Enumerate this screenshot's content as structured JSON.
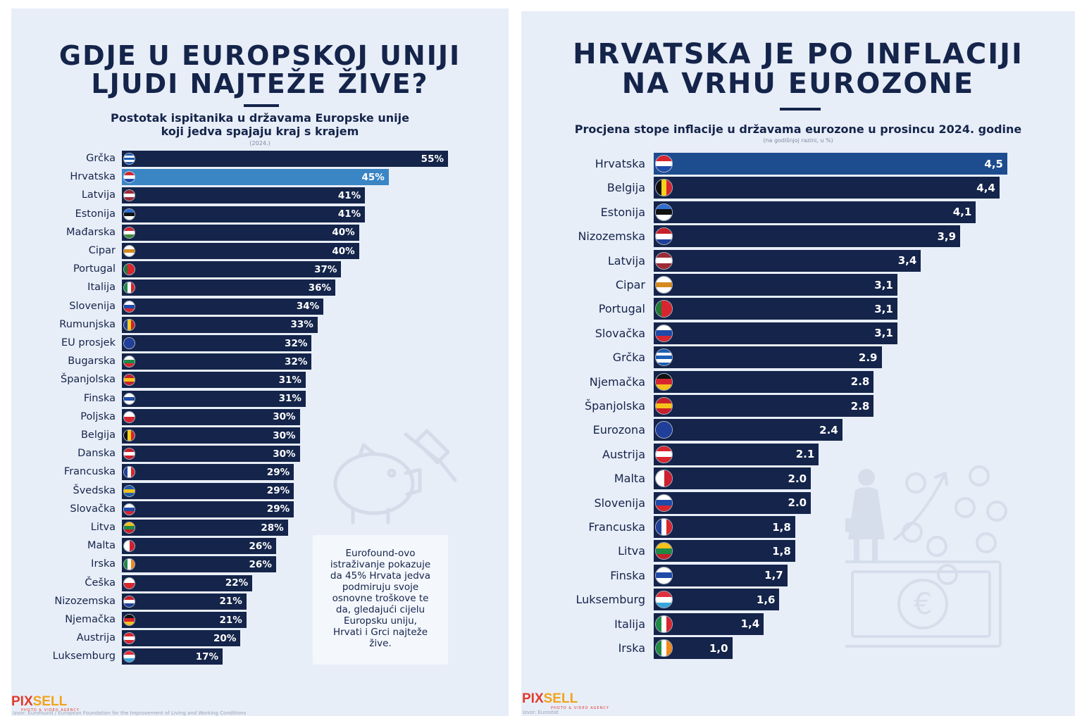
{
  "left": {
    "title_lines": [
      "GDJE U EUROPSKOJ UNIJI",
      "LJUDI NAJTEŽE ŽIVE?"
    ],
    "subtitle_lines": [
      "Postotak ispitanika u državama Europske unije",
      "koji jedva spajaju kraj s krajem"
    ],
    "year_note": "(2024.)",
    "note_lines": [
      "Eurofound-ovo",
      "istraživanje pokazuje",
      "da 45% Hrvata jedva",
      "podmiruju svoje",
      "osnovne troškove te",
      "da, gledajući cijelu",
      "Europsku uniju,",
      "Hrvati i Grci najteže",
      "žive."
    ],
    "source": "Izvor: Eurofound / European Foundation for the Improvement of Living and Working Conditions",
    "logo": {
      "pix": "PIX",
      "sell": "SELL",
      "sub": "PHOTO & VIDEO AGENCY"
    }
  },
  "right": {
    "title_lines": [
      "HRVATSKA JE PO INFLACIJI",
      "NA VRHU EUROZONE"
    ],
    "subtitle": "Procjena stope inflacije u državama eurozone u prosincu 2024. godine",
    "unit_note": "(na godišnjoj razini, u %)",
    "source": "Izvor: Eurostat",
    "logo": {
      "pix": "PIX",
      "sell": "SELL",
      "sub": "PHOTO & VIDEO AGENCY"
    }
  },
  "colors": {
    "bar": "#14244a",
    "highlight_left": "#3a85c4",
    "highlight_right": "#1d4c8f",
    "background": "#e8eef8",
    "text": "#14244a"
  },
  "chart_data": [
    {
      "type": "bar",
      "orientation": "horizontal",
      "title": "GDJE U EUROPSKOJ UNIJI LJUDI NAJTEŽE ŽIVE?",
      "subtitle": "Postotak ispitanika u državama Europske unije koji jedva spajaju kraj s krajem",
      "unit": "%",
      "highlight": "Hrvatska",
      "categories": [
        "Grčka",
        "Hrvatska",
        "Latvija",
        "Estonija",
        "Mađarska",
        "Cipar",
        "Portugal",
        "Italija",
        "Slovenija",
        "Rumunjska",
        "EU prosjek",
        "Bugarska",
        "Španjolska",
        "Finska",
        "Poljska",
        "Belgija",
        "Danska",
        "Francuska",
        "Švedska",
        "Slovačka",
        "Litva",
        "Malta",
        "Irska",
        "Češka",
        "Nizozemska",
        "Njemačka",
        "Austrija",
        "Luksemburg"
      ],
      "values": [
        55,
        45,
        41,
        41,
        40,
        40,
        37,
        36,
        34,
        33,
        32,
        32,
        31,
        31,
        30,
        30,
        30,
        29,
        29,
        29,
        28,
        26,
        26,
        22,
        21,
        21,
        20,
        17
      ],
      "labels": [
        "55%",
        "45%",
        "41%",
        "41%",
        "40%",
        "40%",
        "37%",
        "36%",
        "34%",
        "33%",
        "32%",
        "32%",
        "31%",
        "31%",
        "30%",
        "30%",
        "30%",
        "29%",
        "29%",
        "29%",
        "28%",
        "26%",
        "26%",
        "22%",
        "21%",
        "21%",
        "20%",
        "17%"
      ],
      "flags": [
        "gr",
        "hr",
        "lv",
        "ee",
        "hu",
        "cy",
        "pt",
        "it",
        "si",
        "ro",
        "eu",
        "bg",
        "es",
        "fi",
        "pl",
        "be",
        "dk",
        "fr",
        "se",
        "sk",
        "lt",
        "mt",
        "ie",
        "cz",
        "nl",
        "de",
        "at",
        "lu"
      ],
      "xlim": [
        0,
        55
      ]
    },
    {
      "type": "bar",
      "orientation": "horizontal",
      "title": "HRVATSKA JE PO INFLACIJI NA VRHU EUROZONE",
      "subtitle": "Procjena stope inflacije u državama eurozone u prosincu 2024. godine",
      "unit": "%",
      "highlight": "Hrvatska",
      "categories": [
        "Hrvatska",
        "Belgija",
        "Estonija",
        "Nizozemska",
        "Latvija",
        "Cipar",
        "Portugal",
        "Slovačka",
        "Grčka",
        "Njemačka",
        "Španjolska",
        "Eurozona",
        "Austrija",
        "Malta",
        "Slovenija",
        "Francuska",
        "Litva",
        "Finska",
        "Luksemburg",
        "Italija",
        "Irska"
      ],
      "values": [
        4.5,
        4.4,
        4.1,
        3.9,
        3.4,
        3.1,
        3.1,
        3.1,
        2.9,
        2.8,
        2.8,
        2.4,
        2.1,
        2.0,
        2.0,
        1.8,
        1.8,
        1.7,
        1.6,
        1.4,
        1.0
      ],
      "labels": [
        "4,5",
        "4,4",
        "4,1",
        "3,9",
        "3,4",
        "3,1",
        "3,1",
        "3,1",
        "2.9",
        "2.8",
        "2.8",
        "2.4",
        "2.1",
        "2.0",
        "2.0",
        "1,8",
        "1,8",
        "1,7",
        "1,6",
        "1,4",
        "1,0"
      ],
      "flags": [
        "hr",
        "be",
        "ee",
        "nl",
        "lv",
        "cy",
        "pt",
        "sk",
        "gr",
        "de",
        "es",
        "eu",
        "at",
        "mt",
        "si",
        "fr",
        "lt",
        "fi",
        "lu",
        "it",
        "ie"
      ],
      "xlim": [
        0,
        4.5
      ]
    }
  ]
}
